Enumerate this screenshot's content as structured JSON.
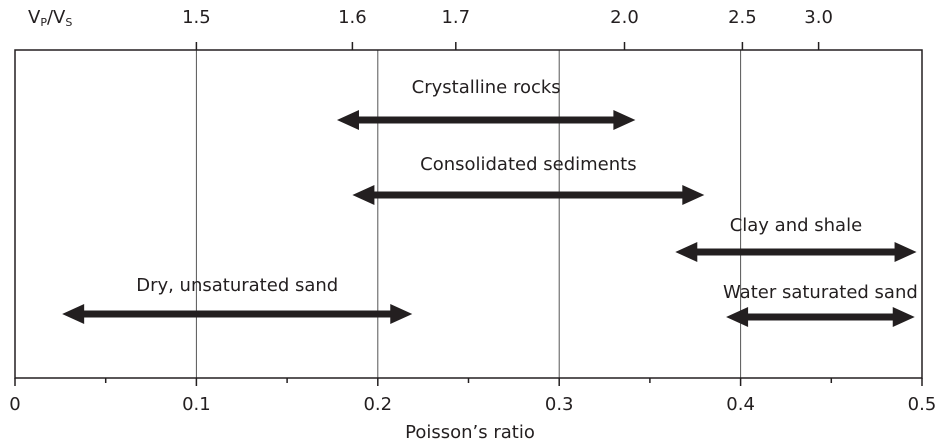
{
  "chart_data": {
    "type": "range",
    "xlabel": "Poisson’s ratio",
    "x2label": [
      "V",
      "P",
      "/V",
      "S"
    ],
    "xlim": [
      0,
      0.5
    ],
    "xticks": [
      0,
      0.1,
      0.2,
      0.3,
      0.4,
      0.5
    ],
    "xminorticks": [
      0.05,
      0.15,
      0.25,
      0.35,
      0.45
    ],
    "x2ticks": [
      {
        "value": 0.1,
        "label": "1.5"
      },
      {
        "value": 0.186,
        "label": "1.6"
      },
      {
        "value": 0.243,
        "label": "1.7"
      },
      {
        "value": 0.336,
        "label": "2.0"
      },
      {
        "value": 0.401,
        "label": "2.5"
      },
      {
        "value": 0.443,
        "label": "3.0"
      }
    ],
    "grid": true,
    "color": "#231f20",
    "ranges": [
      {
        "name": "Crystalline rocks",
        "low": 0.1775,
        "high": 0.342
      },
      {
        "name": "Consolidated sediments",
        "low": 0.186,
        "high": 0.38
      },
      {
        "name": "Clay and shale",
        "low": 0.364,
        "high": 0.497
      },
      {
        "name": "Dry, unsaturated sand",
        "low": 0.026,
        "high": 0.219
      },
      {
        "name": "Water saturated sand",
        "low": 0.392,
        "high": 0.496
      }
    ]
  }
}
